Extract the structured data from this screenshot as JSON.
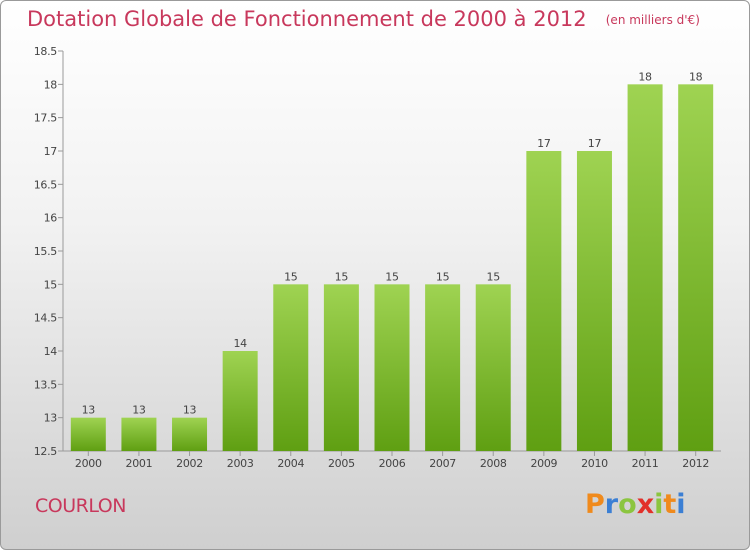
{
  "header": {
    "title": "Dotation Globale de Fonctionnement de 2000 à 2012",
    "subtitle": "(en milliers d'€)"
  },
  "footer": {
    "commune": "COURLON",
    "logo_text": "Proxiti"
  },
  "colors": {
    "title": "#c8385c",
    "bar_light": "#9fd352",
    "bar_dark": "#5f9f12",
    "logo_letters": [
      "#f08a1c",
      "#3b7fd4",
      "#8bc53f",
      "#e2302a",
      "#8bc53f",
      "#f08a1c",
      "#3b7fd4"
    ]
  },
  "chart_data": {
    "type": "bar",
    "title": "Dotation Globale de Fonctionnement de 2000 à 2012",
    "subtitle": "(en milliers d'€)",
    "categories": [
      "2000",
      "2001",
      "2002",
      "2003",
      "2004",
      "2005",
      "2006",
      "2007",
      "2008",
      "2009",
      "2010",
      "2011",
      "2012"
    ],
    "values": [
      13,
      13,
      13,
      14,
      15,
      15,
      15,
      15,
      15,
      17,
      17,
      18,
      18
    ],
    "data_labels": [
      "13",
      "13",
      "13",
      "14",
      "15",
      "15",
      "15",
      "15",
      "15",
      "17",
      "17",
      "18",
      "18"
    ],
    "ylim": [
      12.5,
      18.5
    ],
    "yticks": [
      "12.5",
      "13",
      "13.5",
      "14",
      "14.5",
      "15",
      "15.5",
      "16",
      "16.5",
      "17",
      "17.5",
      "18",
      "18.5"
    ],
    "grid": false,
    "legend": "none"
  }
}
